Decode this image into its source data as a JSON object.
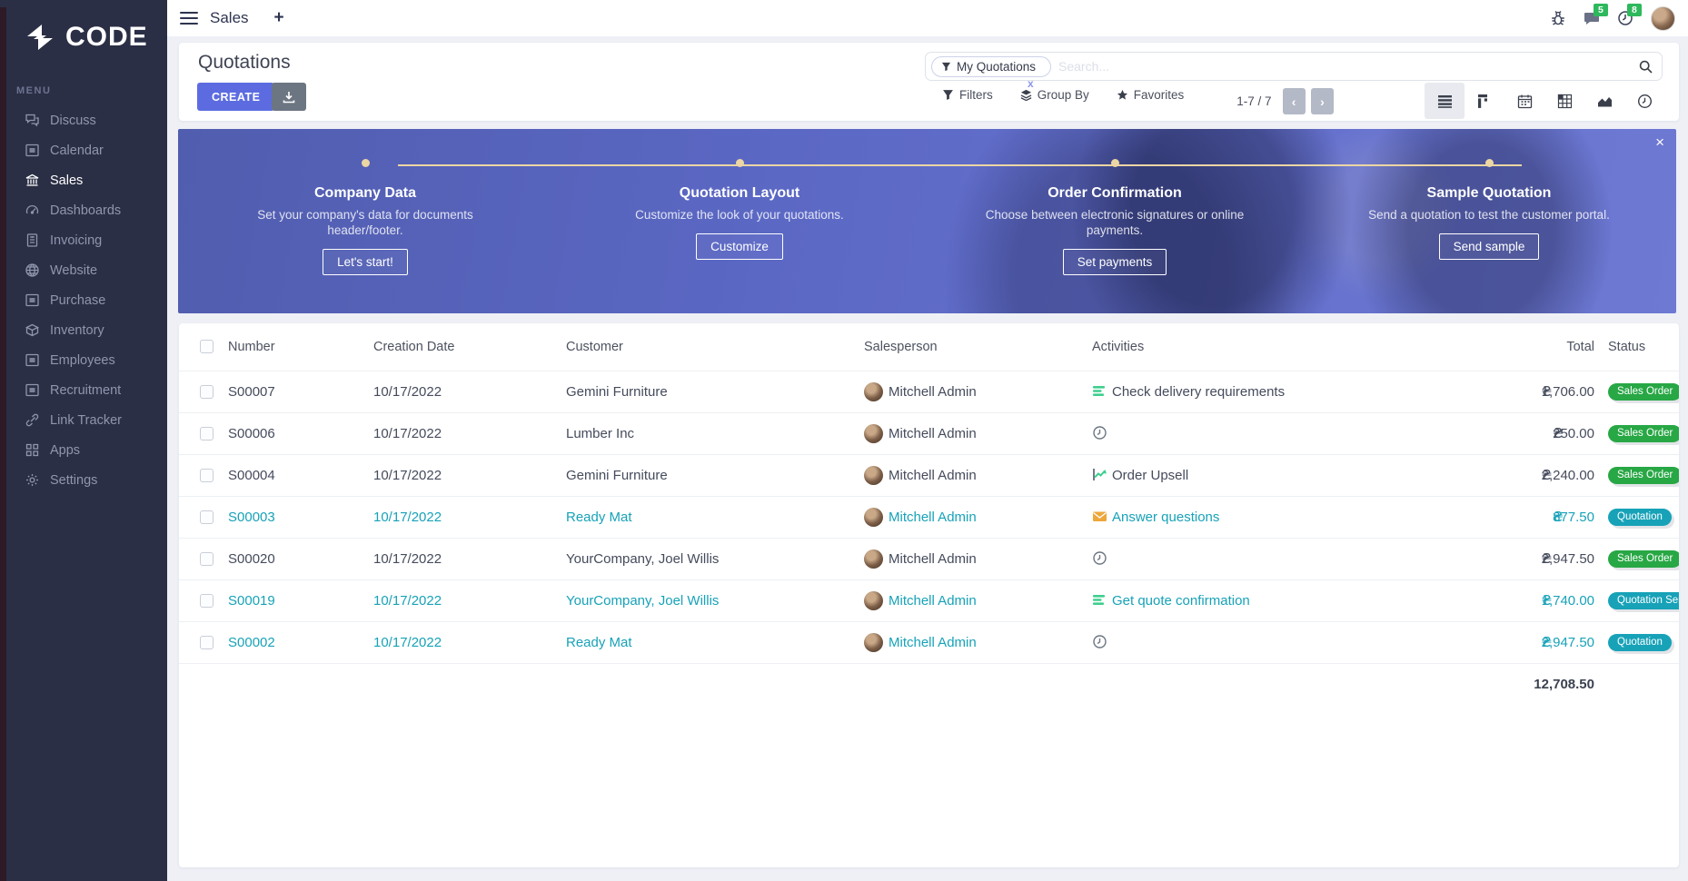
{
  "sidebar": {
    "logo_text": "CODE",
    "menu_label": "MENU",
    "items": [
      {
        "label": "Discuss",
        "icon": "chat-icon",
        "active": false
      },
      {
        "label": "Calendar",
        "icon": "image-icon",
        "active": false
      },
      {
        "label": "Sales",
        "icon": "bank-icon",
        "active": true
      },
      {
        "label": "Dashboards",
        "icon": "speedometer-icon",
        "active": false
      },
      {
        "label": "Invoicing",
        "icon": "invoice-icon",
        "active": false
      },
      {
        "label": "Website",
        "icon": "globe-icon",
        "active": false
      },
      {
        "label": "Purchase",
        "icon": "image-icon",
        "active": false
      },
      {
        "label": "Inventory",
        "icon": "box-icon",
        "active": false
      },
      {
        "label": "Employees",
        "icon": "image-icon",
        "active": false
      },
      {
        "label": "Recruitment",
        "icon": "image-icon",
        "active": false
      },
      {
        "label": "Link Tracker",
        "icon": "link-icon",
        "active": false
      },
      {
        "label": "Apps",
        "icon": "grid-icon",
        "active": false
      },
      {
        "label": "Settings",
        "icon": "gear-icon",
        "active": false
      }
    ]
  },
  "topbar": {
    "app_name": "Sales",
    "add_tab_label": "+",
    "message_badge": "5",
    "activity_badge": "8"
  },
  "control_panel": {
    "title": "Quotations",
    "create_label": "CREATE",
    "search": {
      "facet_label": "My Quotations",
      "facet_remove": "x",
      "placeholder": "Search..."
    },
    "filters_label": "Filters",
    "groupby_label": "Group By",
    "favorites_label": "Favorites",
    "pager_text": "1-7 / 7",
    "prev_label": "‹",
    "next_label": "›",
    "views": [
      "list-view-icon",
      "kanban-view-icon",
      "calendar-view-icon",
      "pivot-view-icon",
      "graph-view-icon",
      "activity-view-icon"
    ],
    "active_view": 0
  },
  "banner": {
    "close_label": "×",
    "steps": [
      {
        "title": "Company Data",
        "description": "Set your company's data for documents header/footer.",
        "button": "Let's start!"
      },
      {
        "title": "Quotation Layout",
        "description": "Customize the look of your quotations.",
        "button": "Customize"
      },
      {
        "title": "Order Confirmation",
        "description": "Choose between electronic signatures or online payments.",
        "button": "Set payments"
      },
      {
        "title": "Sample Quotation",
        "description": "Send a quotation to test the customer portal.",
        "button": "Send sample"
      }
    ]
  },
  "table": {
    "headers": [
      "Number",
      "Creation Date",
      "Customer",
      "Salesperson",
      "Activities",
      "Total",
      "Status"
    ],
    "currency_symbol": "₴",
    "rows": [
      {
        "number": "S00007",
        "date": "10/17/2022",
        "customer": "Gemini Furniture",
        "salesperson": "Mitchell Admin",
        "activity_icon": "list-activity-icon",
        "activity_text": "Check delivery requirements",
        "total": "1,706.00",
        "status": "Sales Order",
        "status_color": "green",
        "teal": false
      },
      {
        "number": "S00006",
        "date": "10/17/2022",
        "customer": "Lumber Inc",
        "salesperson": "Mitchell Admin",
        "activity_icon": "clock-icon",
        "activity_text": "",
        "total": "250.00",
        "status": "Sales Order",
        "status_color": "green",
        "teal": false
      },
      {
        "number": "S00004",
        "date": "10/17/2022",
        "customer": "Gemini Furniture",
        "salesperson": "Mitchell Admin",
        "activity_icon": "chart-up-icon",
        "activity_text": "Order Upsell",
        "total": "2,240.00",
        "status": "Sales Order",
        "status_color": "green",
        "teal": false
      },
      {
        "number": "S00003",
        "date": "10/17/2022",
        "customer": "Ready Mat",
        "salesperson": "Mitchell Admin",
        "activity_icon": "envelope-icon",
        "activity_text": "Answer questions",
        "total": "877.50",
        "status": "Quotation",
        "status_color": "teal",
        "teal": true
      },
      {
        "number": "S00020",
        "date": "10/17/2022",
        "customer": "YourCompany, Joel Willis",
        "salesperson": "Mitchell Admin",
        "activity_icon": "clock-icon",
        "activity_text": "",
        "total": "2,947.50",
        "status": "Sales Order",
        "status_color": "green",
        "teal": false
      },
      {
        "number": "S00019",
        "date": "10/17/2022",
        "customer": "YourCompany, Joel Willis",
        "salesperson": "Mitchell Admin",
        "activity_icon": "list-activity-icon",
        "activity_text": "Get quote confirmation",
        "total": "1,740.00",
        "status": "Quotation Sent",
        "status_color": "teal",
        "teal": true
      },
      {
        "number": "S00002",
        "date": "10/17/2022",
        "customer": "Ready Mat",
        "salesperson": "Mitchell Admin",
        "activity_icon": "clock-icon",
        "activity_text": "",
        "total": "2,947.50",
        "status": "Quotation",
        "status_color": "teal",
        "teal": true
      }
    ],
    "footer_total": "12,708.50"
  }
}
